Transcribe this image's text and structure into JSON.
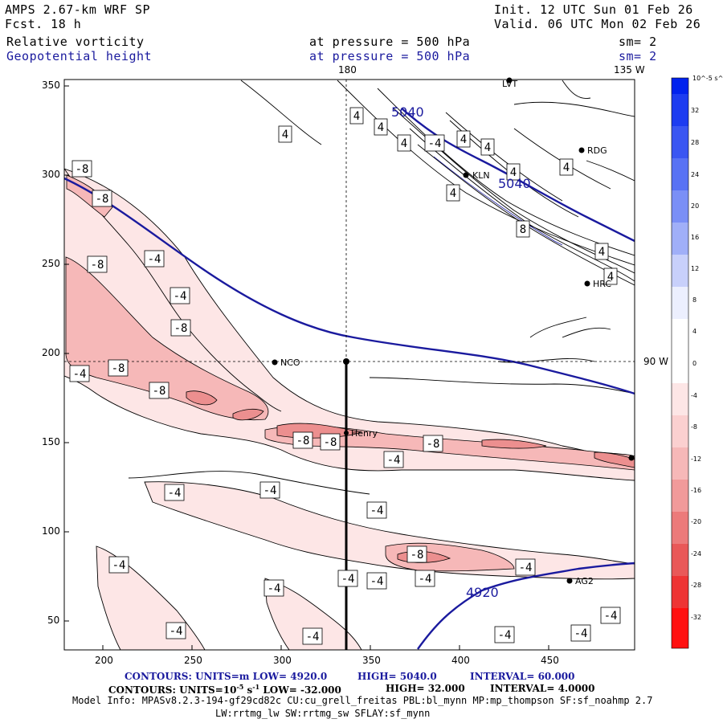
{
  "header": {
    "model": "AMPS 2.67-km WRF SP",
    "fcst": "Fcst.   18 h",
    "init": "Init. 12 UTC Sun 01 Feb 26",
    "valid": "Valid. 06 UTC Mon 02 Feb 26",
    "field1": "Relative vorticity",
    "field2": "Geopotential height",
    "pressure1": "at pressure =  500 hPa",
    "pressure2": "at pressure =  500 hPa",
    "sm1": "sm= 2",
    "sm2": "sm= 2"
  },
  "map": {
    "lon_180": "180",
    "lon_135w": "135 W",
    "lon_90w": "90 W",
    "y_ticks": [
      "350",
      "300",
      "250",
      "200",
      "150",
      "100",
      "50"
    ],
    "x_ticks": [
      "200",
      "250",
      "300",
      "350",
      "400",
      "450"
    ],
    "stations": [
      {
        "name": "LVT",
        "label": "LVT"
      },
      {
        "name": "RDG",
        "label": "RDG"
      },
      {
        "name": "KLN",
        "label": "KLN"
      },
      {
        "name": "HRC",
        "label": "HRC"
      },
      {
        "name": "NCO",
        "label": "NCO"
      },
      {
        "name": "Henry",
        "label": "Henry"
      },
      {
        "name": "AG2",
        "label": "AG2"
      }
    ],
    "height_labels": [
      "5040",
      "5040",
      "4920"
    ],
    "colorbar": {
      "unit": "10^-5 s^-1",
      "levels": [
        "32",
        "28",
        "24",
        "20",
        "16",
        "12",
        "8",
        "4",
        "0",
        "-4",
        "-8",
        "-12",
        "-16",
        "-20",
        "-24",
        "-28",
        "-32"
      ]
    }
  },
  "footer": {
    "line1_a": "CONTOURS:  UNITS=m  LOW=   4920.0",
    "line1_b": "HIGH=  5040.0",
    "line1_c": "INTERVAL=   60.000",
    "line2_a": "CONTOURS:  UNITS=10",
    "line2_exp": "-5",
    "line2_b": " s",
    "line2_exp2": "-1",
    "line2_c": "   LOW=  -32.000",
    "line2_d": "HIGH=   32.000",
    "line2_e": "INTERVAL=    4.0000",
    "model_info": "Model Info: MPASv8.2.3-194-gf29cd82c CU:cu_grell_freitas PBL:bl_mynn MP:mp_thompson SF:sf_noahmp 2.7",
    "model_info2": "LW:rrtmg_lw SW:rrtmg_sw SFLAY:sf_mynn"
  },
  "colors": {
    "height_contour": "#1a1a9e",
    "neg_fill_light": "#fde6e6",
    "neg_fill_mid": "#f6b8b8",
    "neg_fill_dark": "#ec8f8f"
  }
}
